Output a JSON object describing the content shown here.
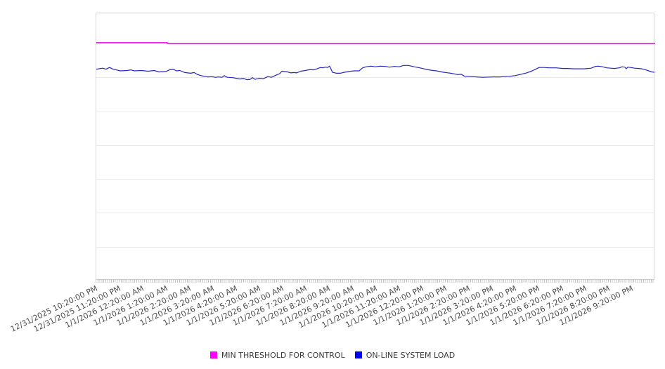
{
  "chart_data": {
    "type": "line",
    "title": "",
    "x_axis": {
      "tick_labels": [
        "12/31/2025 10:20:00 PM",
        "12/31/2025 11:20:00 PM",
        "1/1/2026 12:20:00 AM",
        "1/1/2026 1:20:00 AM",
        "1/1/2026 2:20:00 AM",
        "1/1/2026 3:20:00 AM",
        "1/1/2026 4:20:00 AM",
        "1/1/2026 5:20:00 AM",
        "1/1/2026 6:20:00 AM",
        "1/1/2026 7:20:00 AM",
        "1/1/2026 8:20:00 AM",
        "1/1/2026 9:20:00 AM",
        "1/1/2026 10:20:00 AM",
        "1/1/2026 11:20:00 AM",
        "1/1/2026 12:20:00 PM",
        "1/1/2026 1:20:00 PM",
        "1/1/2026 2:20:00 PM",
        "1/1/2026 3:20:00 PM",
        "1/1/2026 4:20:00 PM",
        "1/1/2026 5:20:00 PM",
        "1/1/2026 6:20:00 PM",
        "1/1/2026 7:20:00 PM",
        "1/1/2026 8:20:00 PM",
        "1/1/2026 9:20:00 PM"
      ],
      "hours_span": 24,
      "tick_interval_hours": 1,
      "minor_tick_interval_minutes": 5
    },
    "y_axis": {
      "labels_visible": false,
      "min": 0,
      "max": 8,
      "gridline_step": 1,
      "gridline_values": [
        1,
        2,
        3,
        4,
        5,
        6,
        7
      ],
      "grid": true
    },
    "legend_position": "bottom",
    "series": [
      {
        "name": "MIN THRESHOLD FOR CONTROL",
        "line_color": "#e800e8",
        "swatch_color": "#ff00ff",
        "line_width": 1.5,
        "points": [
          [
            0,
            7.02
          ],
          [
            3.05,
            7.02
          ],
          [
            3.05,
            7.0
          ],
          [
            24,
            7.0
          ]
        ]
      },
      {
        "name": "ON-LINE SYSTEM LOAD",
        "line_color": "#2626bf",
        "swatch_color": "#0000ee",
        "line_width": 1.2,
        "points": [
          [
            0,
            6.24
          ],
          [
            0.27,
            6.27
          ],
          [
            0.42,
            6.24
          ],
          [
            0.57,
            6.29
          ],
          [
            0.72,
            6.24
          ],
          [
            1.03,
            6.19
          ],
          [
            1.33,
            6.2
          ],
          [
            1.48,
            6.22
          ],
          [
            1.63,
            6.19
          ],
          [
            1.93,
            6.2
          ],
          [
            2.23,
            6.18
          ],
          [
            2.48,
            6.2
          ],
          [
            2.69,
            6.16
          ],
          [
            2.99,
            6.17
          ],
          [
            3.14,
            6.22
          ],
          [
            3.29,
            6.24
          ],
          [
            3.44,
            6.19
          ],
          [
            3.59,
            6.2
          ],
          [
            3.8,
            6.14
          ],
          [
            4.05,
            6.12
          ],
          [
            4.2,
            6.14
          ],
          [
            4.35,
            6.08
          ],
          [
            4.5,
            6.05
          ],
          [
            4.65,
            6.03
          ],
          [
            4.8,
            6.01
          ],
          [
            4.95,
            6.02
          ],
          [
            5.1,
            6.0
          ],
          [
            5.25,
            6.01
          ],
          [
            5.4,
            6.0
          ],
          [
            5.49,
            6.05
          ],
          [
            5.62,
            6.0
          ],
          [
            5.86,
            5.99
          ],
          [
            6.01,
            5.97
          ],
          [
            6.16,
            5.95
          ],
          [
            6.31,
            5.97
          ],
          [
            6.46,
            5.93
          ],
          [
            6.61,
            5.94
          ],
          [
            6.7,
            5.99
          ],
          [
            6.82,
            5.94
          ],
          [
            7.0,
            5.97
          ],
          [
            7.18,
            5.96
          ],
          [
            7.37,
            6.02
          ],
          [
            7.52,
            6.0
          ],
          [
            7.67,
            6.05
          ],
          [
            7.88,
            6.11
          ],
          [
            7.97,
            6.18
          ],
          [
            8.21,
            6.16
          ],
          [
            8.36,
            6.13
          ],
          [
            8.48,
            6.14
          ],
          [
            8.6,
            6.13
          ],
          [
            8.78,
            6.18
          ],
          [
            8.97,
            6.2
          ],
          [
            9.18,
            6.23
          ],
          [
            9.33,
            6.22
          ],
          [
            9.48,
            6.25
          ],
          [
            9.63,
            6.29
          ],
          [
            9.72,
            6.28
          ],
          [
            9.84,
            6.3
          ],
          [
            9.93,
            6.29
          ],
          [
            10.02,
            6.33
          ],
          [
            10.14,
            6.15
          ],
          [
            10.32,
            6.12
          ],
          [
            10.48,
            6.12
          ],
          [
            10.6,
            6.14
          ],
          [
            10.75,
            6.16
          ],
          [
            10.93,
            6.18
          ],
          [
            11.11,
            6.19
          ],
          [
            11.29,
            6.19
          ],
          [
            11.44,
            6.28
          ],
          [
            11.59,
            6.31
          ],
          [
            11.8,
            6.33
          ],
          [
            11.98,
            6.31
          ],
          [
            12.2,
            6.33
          ],
          [
            12.41,
            6.32
          ],
          [
            12.59,
            6.3
          ],
          [
            12.8,
            6.32
          ],
          [
            13.01,
            6.31
          ],
          [
            13.19,
            6.35
          ],
          [
            13.4,
            6.35
          ],
          [
            13.65,
            6.31
          ],
          [
            13.89,
            6.28
          ],
          [
            14.13,
            6.24
          ],
          [
            14.37,
            6.21
          ],
          [
            14.61,
            6.19
          ],
          [
            14.91,
            6.15
          ],
          [
            15.22,
            6.12
          ],
          [
            15.52,
            6.08
          ],
          [
            15.67,
            6.09
          ],
          [
            15.82,
            6.03
          ],
          [
            16.12,
            6.02
          ],
          [
            16.57,
            6.0
          ],
          [
            17.03,
            6.01
          ],
          [
            17.33,
            6.01
          ],
          [
            17.48,
            6.02
          ],
          [
            17.72,
            6.03
          ],
          [
            17.99,
            6.05
          ],
          [
            18.23,
            6.09
          ],
          [
            18.48,
            6.13
          ],
          [
            18.72,
            6.19
          ],
          [
            18.9,
            6.25
          ],
          [
            19.02,
            6.29
          ],
          [
            19.23,
            6.29
          ],
          [
            19.44,
            6.28
          ],
          [
            19.74,
            6.28
          ],
          [
            20.05,
            6.26
          ],
          [
            20.23,
            6.26
          ],
          [
            20.5,
            6.25
          ],
          [
            20.74,
            6.25
          ],
          [
            20.95,
            6.25
          ],
          [
            21.25,
            6.27
          ],
          [
            21.43,
            6.32
          ],
          [
            21.56,
            6.33
          ],
          [
            21.74,
            6.31
          ],
          [
            21.92,
            6.28
          ],
          [
            22.1,
            6.27
          ],
          [
            22.25,
            6.26
          ],
          [
            22.46,
            6.28
          ],
          [
            22.58,
            6.31
          ],
          [
            22.7,
            6.3
          ],
          [
            22.76,
            6.25
          ],
          [
            22.82,
            6.3
          ],
          [
            22.94,
            6.29
          ],
          [
            23.12,
            6.27
          ],
          [
            23.3,
            6.26
          ],
          [
            23.42,
            6.25
          ],
          [
            23.6,
            6.22
          ],
          [
            23.72,
            6.19
          ],
          [
            23.85,
            6.16
          ],
          [
            23.97,
            6.15
          ]
        ]
      }
    ]
  }
}
